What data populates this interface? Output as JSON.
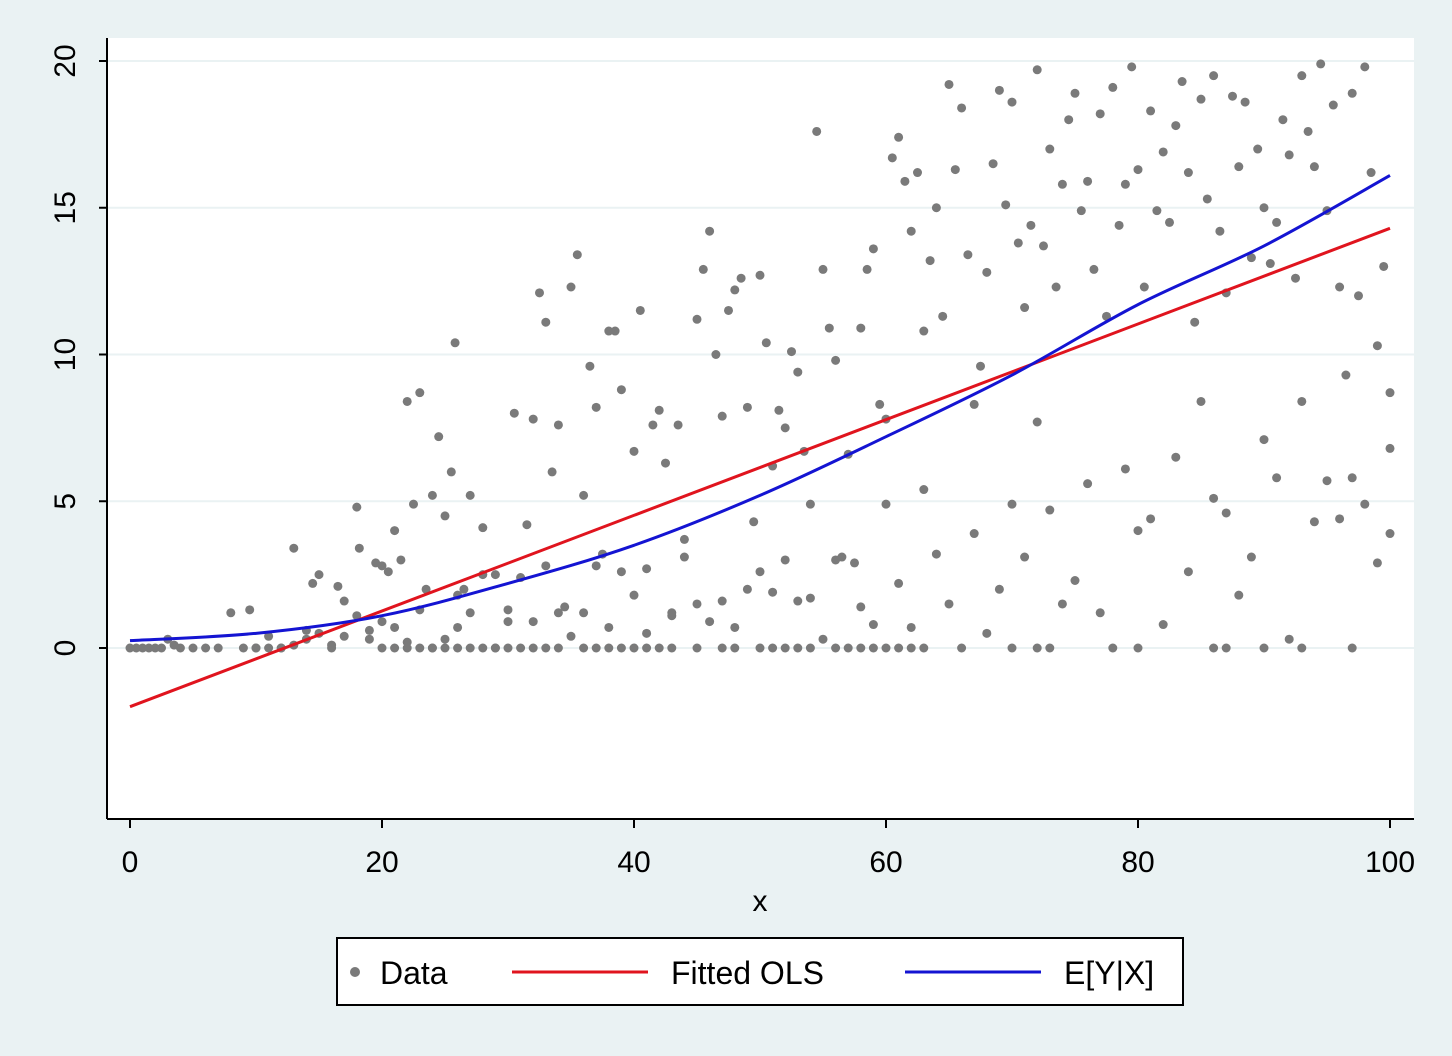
{
  "chart_data": {
    "type": "scatter",
    "title": "",
    "xlabel": "x",
    "ylabel": "",
    "xlim": [
      0,
      100
    ],
    "ylim": [
      -5.7,
      20.8
    ],
    "xticks": [
      "0",
      "20",
      "40",
      "60",
      "80",
      "100"
    ],
    "yticks": [
      "0",
      "5",
      "10",
      "15",
      "20"
    ],
    "grid": "horizontal",
    "legend_position": "bottom",
    "colors": {
      "background": "#eaf2f3",
      "plot_background": "#ffffff",
      "grid": "#eaf2f3",
      "data": "#7a7a7a",
      "fitted_ols": "#e0141e",
      "expected": "#1414d2"
    },
    "series": [
      {
        "name": "Data",
        "kind": "points",
        "points": [
          [
            0,
            0
          ],
          [
            0.5,
            0
          ],
          [
            1,
            0
          ],
          [
            1.5,
            0
          ],
          [
            2,
            0
          ],
          [
            2.5,
            0
          ],
          [
            3,
            0.3
          ],
          [
            3.5,
            0.1
          ],
          [
            4,
            0
          ],
          [
            5,
            0
          ],
          [
            6,
            0
          ],
          [
            7,
            0
          ],
          [
            8,
            1.2
          ],
          [
            9,
            0
          ],
          [
            9.5,
            1.3
          ],
          [
            10,
            0
          ],
          [
            11,
            0.4
          ],
          [
            12,
            0
          ],
          [
            13,
            3.4
          ],
          [
            14,
            0.6
          ],
          [
            14.5,
            2.2
          ],
          [
            15,
            2.5
          ],
          [
            16,
            0.1
          ],
          [
            16.5,
            2.1
          ],
          [
            17,
            1.6
          ],
          [
            18,
            4.8
          ],
          [
            18.2,
            3.4
          ],
          [
            19,
            0.6
          ],
          [
            19.5,
            2.9
          ],
          [
            20,
            2.8
          ],
          [
            20.5,
            2.6
          ],
          [
            21,
            4.0
          ],
          [
            21.5,
            3.0
          ],
          [
            22,
            8.4
          ],
          [
            22.5,
            4.9
          ],
          [
            23,
            8.7
          ],
          [
            23.5,
            2.0
          ],
          [
            24,
            5.2
          ],
          [
            24.5,
            7.2
          ],
          [
            25,
            4.5
          ],
          [
            25.5,
            6.0
          ],
          [
            25.8,
            10.4
          ],
          [
            26,
            1.8
          ],
          [
            26.5,
            2.0
          ],
          [
            27,
            5.2
          ],
          [
            28,
            4.1
          ],
          [
            29,
            2.5
          ],
          [
            30,
            1.3
          ],
          [
            30.5,
            8.0
          ],
          [
            31,
            2.4
          ],
          [
            31.5,
            4.2
          ],
          [
            32,
            7.8
          ],
          [
            32.5,
            12.1
          ],
          [
            33,
            11.1
          ],
          [
            33.5,
            6.0
          ],
          [
            34,
            7.6
          ],
          [
            34.5,
            1.4
          ],
          [
            35,
            12.3
          ],
          [
            35.5,
            13.4
          ],
          [
            36,
            5.2
          ],
          [
            36.5,
            9.6
          ],
          [
            37,
            8.2
          ],
          [
            37.5,
            3.2
          ],
          [
            38,
            10.8
          ],
          [
            38.5,
            10.8
          ],
          [
            39,
            8.8
          ],
          [
            40,
            6.7
          ],
          [
            40.5,
            11.5
          ],
          [
            41,
            2.7
          ],
          [
            41.5,
            7.6
          ],
          [
            42,
            8.1
          ],
          [
            42.5,
            6.3
          ],
          [
            43,
            1.2
          ],
          [
            43.5,
            7.6
          ],
          [
            44,
            3.1
          ],
          [
            45,
            11.2
          ],
          [
            45.5,
            12.9
          ],
          [
            46,
            14.2
          ],
          [
            46.5,
            10.0
          ],
          [
            47,
            7.9
          ],
          [
            47.5,
            11.5
          ],
          [
            48,
            12.2
          ],
          [
            48.5,
            12.6
          ],
          [
            49,
            8.2
          ],
          [
            49.5,
            4.3
          ],
          [
            50,
            12.7
          ],
          [
            50.5,
            10.4
          ],
          [
            51,
            6.2
          ],
          [
            51.5,
            8.1
          ],
          [
            52,
            7.5
          ],
          [
            52.5,
            10.1
          ],
          [
            53,
            9.4
          ],
          [
            53.5,
            6.7
          ],
          [
            54,
            4.9
          ],
          [
            54.5,
            17.6
          ],
          [
            55,
            12.9
          ],
          [
            55.5,
            10.9
          ],
          [
            56,
            9.8
          ],
          [
            56.5,
            3.1
          ],
          [
            57,
            6.6
          ],
          [
            57.5,
            2.9
          ],
          [
            58,
            10.9
          ],
          [
            58.5,
            12.9
          ],
          [
            59,
            13.6
          ],
          [
            59.5,
            8.3
          ],
          [
            60,
            7.8
          ],
          [
            60.5,
            16.7
          ],
          [
            61,
            17.4
          ],
          [
            61.5,
            15.9
          ],
          [
            62,
            14.2
          ],
          [
            62.5,
            16.2
          ],
          [
            63,
            10.8
          ],
          [
            63.5,
            13.2
          ],
          [
            64,
            15.0
          ],
          [
            64.5,
            11.3
          ],
          [
            65,
            19.2
          ],
          [
            65.5,
            16.3
          ],
          [
            66,
            18.4
          ],
          [
            66.5,
            13.4
          ],
          [
            67,
            8.3
          ],
          [
            67.5,
            9.6
          ],
          [
            68,
            12.8
          ],
          [
            68.5,
            16.5
          ],
          [
            69,
            19.0
          ],
          [
            69.5,
            15.1
          ],
          [
            70,
            18.6
          ],
          [
            70.5,
            13.8
          ],
          [
            71,
            11.6
          ],
          [
            71.5,
            14.4
          ],
          [
            72,
            19.7
          ],
          [
            72.5,
            13.7
          ],
          [
            73,
            17.0
          ],
          [
            73.5,
            12.3
          ],
          [
            74,
            15.8
          ],
          [
            74.5,
            18.0
          ],
          [
            75,
            18.9
          ],
          [
            75.5,
            14.9
          ],
          [
            76,
            15.9
          ],
          [
            76.5,
            12.9
          ],
          [
            77,
            18.2
          ],
          [
            77.5,
            11.3
          ],
          [
            78,
            19.1
          ],
          [
            78.5,
            14.4
          ],
          [
            79,
            15.8
          ],
          [
            79.5,
            19.8
          ],
          [
            80,
            16.3
          ],
          [
            80.5,
            12.3
          ],
          [
            81,
            18.3
          ],
          [
            81.5,
            14.9
          ],
          [
            82,
            16.9
          ],
          [
            82.5,
            14.5
          ],
          [
            83,
            17.8
          ],
          [
            83.5,
            19.3
          ],
          [
            84,
            16.2
          ],
          [
            84.5,
            11.1
          ],
          [
            85,
            18.7
          ],
          [
            85.5,
            15.3
          ],
          [
            86,
            19.5
          ],
          [
            86.5,
            14.2
          ],
          [
            87,
            12.1
          ],
          [
            87.5,
            18.8
          ],
          [
            88,
            16.4
          ],
          [
            88.5,
            18.6
          ],
          [
            89,
            13.3
          ],
          [
            89.5,
            17.0
          ],
          [
            90,
            15.0
          ],
          [
            90.5,
            13.1
          ],
          [
            91,
            14.5
          ],
          [
            91.5,
            18.0
          ],
          [
            92,
            16.8
          ],
          [
            92.5,
            12.6
          ],
          [
            93,
            19.5
          ],
          [
            93.5,
            17.6
          ],
          [
            94,
            16.4
          ],
          [
            94.5,
            19.9
          ],
          [
            95,
            14.9
          ],
          [
            95.5,
            18.5
          ],
          [
            96,
            12.3
          ],
          [
            96.5,
            9.3
          ],
          [
            97,
            18.9
          ],
          [
            97.5,
            12.0
          ],
          [
            98,
            19.8
          ],
          [
            98.5,
            16.2
          ],
          [
            99,
            10.3
          ],
          [
            99.5,
            13.0
          ],
          [
            100,
            6.8
          ],
          [
            100,
            8.7
          ],
          [
            100,
            3.9
          ],
          [
            99,
            2.9
          ],
          [
            98,
            4.9
          ],
          [
            97,
            5.8
          ],
          [
            96,
            4.4
          ],
          [
            95,
            5.7
          ],
          [
            94,
            4.3
          ],
          [
            93,
            8.4
          ],
          [
            92,
            0.3
          ],
          [
            91,
            5.8
          ],
          [
            90,
            7.1
          ],
          [
            89,
            3.1
          ],
          [
            88,
            1.8
          ],
          [
            87,
            4.6
          ],
          [
            86,
            5.1
          ],
          [
            85,
            8.4
          ],
          [
            84,
            2.6
          ],
          [
            83,
            6.5
          ],
          [
            82,
            0.8
          ],
          [
            81,
            4.4
          ],
          [
            80,
            4.0
          ],
          [
            79,
            6.1
          ],
          [
            78,
            0.0
          ],
          [
            77,
            1.2
          ],
          [
            76,
            5.6
          ],
          [
            75,
            2.3
          ],
          [
            74,
            1.5
          ],
          [
            73,
            4.7
          ],
          [
            72,
            7.7
          ],
          [
            71,
            3.1
          ],
          [
            70,
            4.9
          ],
          [
            69,
            2.0
          ],
          [
            68,
            0.5
          ],
          [
            67,
            3.9
          ],
          [
            66,
            0.0
          ],
          [
            65,
            1.5
          ],
          [
            64,
            3.2
          ],
          [
            63,
            5.4
          ],
          [
            62,
            0.7
          ],
          [
            61,
            2.2
          ],
          [
            60,
            4.9
          ],
          [
            59,
            0.8
          ],
          [
            58,
            1.4
          ],
          [
            57,
            0.0
          ],
          [
            56,
            3.0
          ],
          [
            55,
            0.3
          ],
          [
            54,
            1.7
          ],
          [
            53,
            1.6
          ],
          [
            52,
            3.0
          ],
          [
            51,
            1.9
          ],
          [
            50,
            2.6
          ],
          [
            49,
            2.0
          ],
          [
            48,
            0.7
          ],
          [
            47,
            1.6
          ],
          [
            46,
            0.9
          ],
          [
            45,
            1.5
          ],
          [
            44,
            3.7
          ],
          [
            43,
            1.1
          ],
          [
            42,
            0.0
          ],
          [
            41,
            0.5
          ],
          [
            40,
            1.8
          ],
          [
            39,
            2.6
          ],
          [
            38,
            0.7
          ],
          [
            37,
            2.8
          ],
          [
            36,
            1.2
          ],
          [
            35,
            0.4
          ],
          [
            34,
            1.2
          ],
          [
            33,
            2.8
          ],
          [
            32,
            0.9
          ],
          [
            31,
            0.0
          ],
          [
            30,
            0.9
          ],
          [
            29,
            0.0
          ],
          [
            28,
            2.5
          ],
          [
            27,
            1.2
          ],
          [
            26,
            0.7
          ],
          [
            25,
            0.3
          ],
          [
            24,
            0.0
          ],
          [
            23,
            1.3
          ],
          [
            22,
            0.2
          ],
          [
            21,
            0.7
          ],
          [
            20,
            0.9
          ],
          [
            19,
            0.3
          ],
          [
            18,
            1.1
          ],
          [
            17,
            0.4
          ],
          [
            16,
            0.0
          ],
          [
            15,
            0.5
          ],
          [
            14,
            0.3
          ],
          [
            13,
            0.1
          ],
          [
            12,
            0.0
          ],
          [
            11,
            0.0
          ],
          [
            10,
            0.0
          ],
          [
            20,
            0
          ],
          [
            21,
            0
          ],
          [
            22,
            0
          ],
          [
            23,
            0
          ],
          [
            24,
            0
          ],
          [
            25,
            0
          ],
          [
            26,
            0
          ],
          [
            27,
            0
          ],
          [
            28,
            0
          ],
          [
            29,
            0
          ],
          [
            30,
            0
          ],
          [
            32,
            0
          ],
          [
            33,
            0
          ],
          [
            34,
            0
          ],
          [
            36,
            0
          ],
          [
            37,
            0
          ],
          [
            38,
            0
          ],
          [
            39,
            0
          ],
          [
            40,
            0
          ],
          [
            41,
            0
          ],
          [
            43,
            0
          ],
          [
            45,
            0
          ],
          [
            47,
            0
          ],
          [
            48,
            0
          ],
          [
            50,
            0
          ],
          [
            51,
            0
          ],
          [
            52,
            0
          ],
          [
            53,
            0
          ],
          [
            54,
            0
          ],
          [
            56,
            0
          ],
          [
            58,
            0
          ],
          [
            59,
            0
          ],
          [
            60,
            0
          ],
          [
            61,
            0
          ],
          [
            62,
            0
          ],
          [
            63,
            0
          ],
          [
            70,
            0
          ],
          [
            72,
            0
          ],
          [
            73,
            0
          ],
          [
            80,
            0
          ],
          [
            86,
            0
          ],
          [
            87,
            0
          ],
          [
            90,
            0
          ],
          [
            93,
            0
          ],
          [
            97,
            0
          ]
        ]
      },
      {
        "name": "Fitted OLS",
        "kind": "line",
        "x": [
          0,
          100
        ],
        "y": [
          -2.0,
          14.3
        ]
      },
      {
        "name": "E[Y|X]",
        "kind": "line",
        "x": [
          0,
          10,
          20,
          30,
          40,
          50,
          60,
          70,
          80,
          90,
          100
        ],
        "y": [
          0.25,
          0.5,
          1.1,
          2.2,
          3.5,
          5.2,
          7.2,
          9.3,
          11.7,
          13.7,
          16.1
        ]
      }
    ]
  },
  "legend": {
    "items": [
      "Data",
      "Fitted OLS",
      "E[Y|X]"
    ]
  }
}
